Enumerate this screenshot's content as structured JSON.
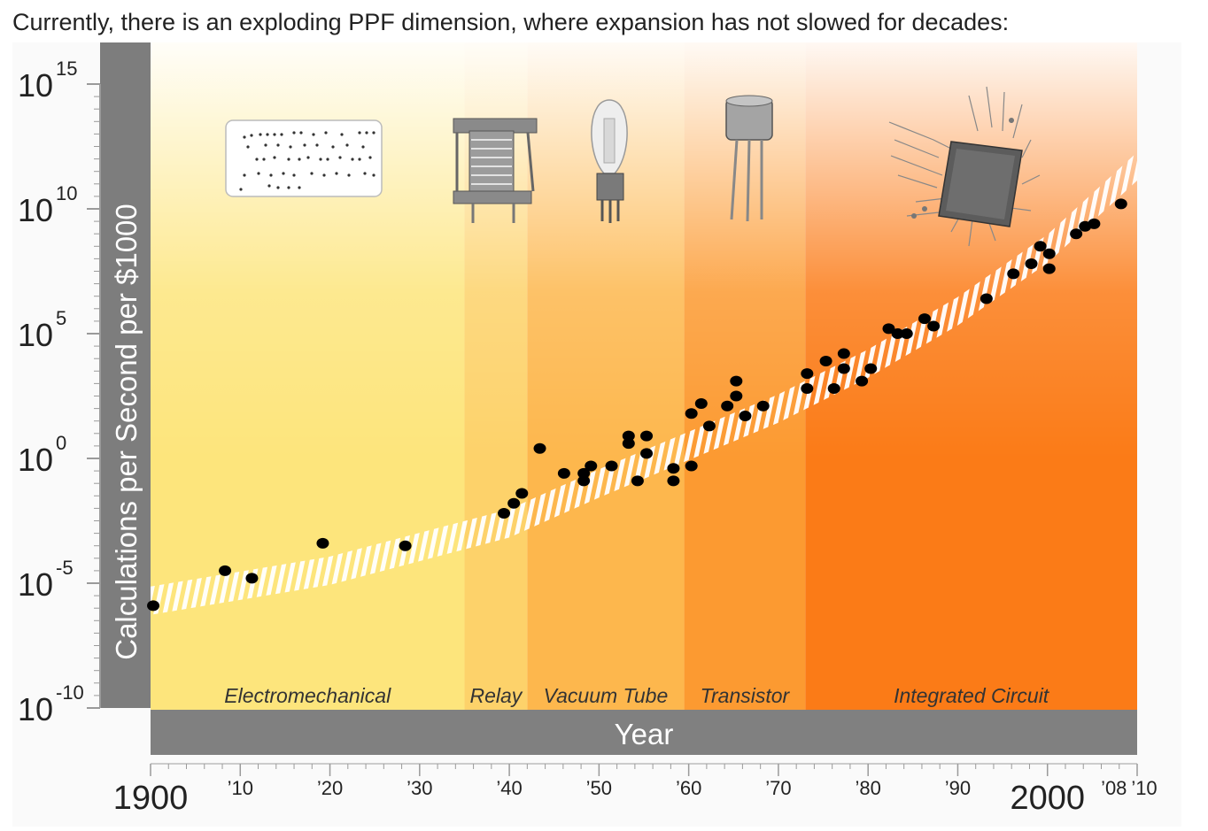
{
  "caption": "Currently, there is an exploding PPF dimension, where expansion has not slowed for decades:",
  "chart_data": {
    "type": "scatter",
    "ylabel": "Calculations per Second per $1000",
    "xlabel": "Year",
    "y_scale": "log10",
    "ylim_exponent": [
      -10,
      15
    ],
    "y_ticks": [
      {
        "base": "10",
        "exp": "15",
        "value": 15
      },
      {
        "base": "10",
        "exp": "10",
        "value": 10
      },
      {
        "base": "10",
        "exp": "5",
        "value": 5
      },
      {
        "base": "10",
        "exp": "0",
        "value": 0
      },
      {
        "base": "10",
        "exp": "-5",
        "value": -5
      },
      {
        "base": "10",
        "exp": "-10",
        "value": -10
      }
    ],
    "xlim": [
      1900,
      2010
    ],
    "x_ticks": [
      {
        "label": "1900",
        "year": 1900,
        "major": true
      },
      {
        "label": "’10",
        "year": 1910
      },
      {
        "label": "’20",
        "year": 1920
      },
      {
        "label": "’30",
        "year": 1930
      },
      {
        "label": "’40",
        "year": 1940
      },
      {
        "label": "’50",
        "year": 1950
      },
      {
        "label": "’60",
        "year": 1960
      },
      {
        "label": "’70",
        "year": 1970
      },
      {
        "label": "’80",
        "year": 1980
      },
      {
        "label": "’90",
        "year": 1990
      },
      {
        "label": "2000",
        "year": 2000,
        "major": true
      },
      {
        "label": "’08",
        "year": 2008
      },
      {
        "label": "’10",
        "year": 2010
      }
    ],
    "eras": [
      {
        "name": "Electromechanical",
        "start": 1900,
        "end": 1935,
        "color": "#fde57c"
      },
      {
        "name": "Relay",
        "start": 1935,
        "end": 1942,
        "color": "#fdd26a"
      },
      {
        "name": "Vacuum Tube",
        "start": 1942,
        "end": 1959.5,
        "color": "#fdb74d"
      },
      {
        "name": "Transistor",
        "start": 1959.5,
        "end": 1973,
        "color": "#fc9a31"
      },
      {
        "name": "Integrated Circuit",
        "start": 1973,
        "end": 2010,
        "color": "#fb7b17"
      }
    ],
    "trend_band": [
      [
        1900,
        -5.7
      ],
      [
        1920,
        -4.5
      ],
      [
        1940,
        -2.6
      ],
      [
        1950,
        -1.0
      ],
      [
        1960,
        0.5
      ],
      [
        1970,
        2.0
      ],
      [
        1980,
        3.8
      ],
      [
        1990,
        5.9
      ],
      [
        2000,
        8.4
      ],
      [
        2010,
        11.7
      ]
    ],
    "points": [
      {
        "x": 1900.3,
        "y": -5.9
      },
      {
        "x": 1908.3,
        "y": -4.5
      },
      {
        "x": 1911.3,
        "y": -4.8
      },
      {
        "x": 1919.2,
        "y": -3.4
      },
      {
        "x": 1928.4,
        "y": -3.5
      },
      {
        "x": 1939.4,
        "y": -2.2
      },
      {
        "x": 1940.5,
        "y": -1.8
      },
      {
        "x": 1941.4,
        "y": -1.4
      },
      {
        "x": 1943.4,
        "y": 0.4
      },
      {
        "x": 1946.1,
        "y": -0.6
      },
      {
        "x": 1948.3,
        "y": -0.6
      },
      {
        "x": 1948.3,
        "y": -0.9
      },
      {
        "x": 1949.1,
        "y": -0.3
      },
      {
        "x": 1951.4,
        "y": -0.3
      },
      {
        "x": 1953.3,
        "y": 0.6
      },
      {
        "x": 1953.3,
        "y": 0.9
      },
      {
        "x": 1954.3,
        "y": -0.9
      },
      {
        "x": 1955.3,
        "y": 0.2
      },
      {
        "x": 1955.3,
        "y": 0.9
      },
      {
        "x": 1958.3,
        "y": -0.9
      },
      {
        "x": 1958.3,
        "y": -0.4
      },
      {
        "x": 1960.3,
        "y": -0.3
      },
      {
        "x": 1960.3,
        "y": 1.8
      },
      {
        "x": 1961.4,
        "y": 2.2
      },
      {
        "x": 1962.3,
        "y": 1.3
      },
      {
        "x": 1964.3,
        "y": 2.1
      },
      {
        "x": 1965.3,
        "y": 2.5
      },
      {
        "x": 1965.3,
        "y": 3.1
      },
      {
        "x": 1966.3,
        "y": 1.7
      },
      {
        "x": 1968.3,
        "y": 2.1
      },
      {
        "x": 1973.2,
        "y": 2.8
      },
      {
        "x": 1973.2,
        "y": 3.4
      },
      {
        "x": 1975.3,
        "y": 3.9
      },
      {
        "x": 1976.2,
        "y": 2.8
      },
      {
        "x": 1977.3,
        "y": 3.6
      },
      {
        "x": 1977.3,
        "y": 4.2
      },
      {
        "x": 1979.3,
        "y": 3.1
      },
      {
        "x": 1980.3,
        "y": 3.6
      },
      {
        "x": 1982.3,
        "y": 5.2
      },
      {
        "x": 1983.3,
        "y": 5.0
      },
      {
        "x": 1984.3,
        "y": 5.0
      },
      {
        "x": 1986.3,
        "y": 5.6
      },
      {
        "x": 1987.3,
        "y": 5.3
      },
      {
        "x": 1993.2,
        "y": 6.4
      },
      {
        "x": 1996.2,
        "y": 7.4
      },
      {
        "x": 1998.2,
        "y": 7.8
      },
      {
        "x": 1999.2,
        "y": 8.5
      },
      {
        "x": 2000.2,
        "y": 7.6
      },
      {
        "x": 2000.2,
        "y": 8.2
      },
      {
        "x": 2003.2,
        "y": 9.0
      },
      {
        "x": 2004.2,
        "y": 9.3
      },
      {
        "x": 2005.2,
        "y": 9.4
      },
      {
        "x": 2008.2,
        "y": 10.2
      }
    ]
  }
}
